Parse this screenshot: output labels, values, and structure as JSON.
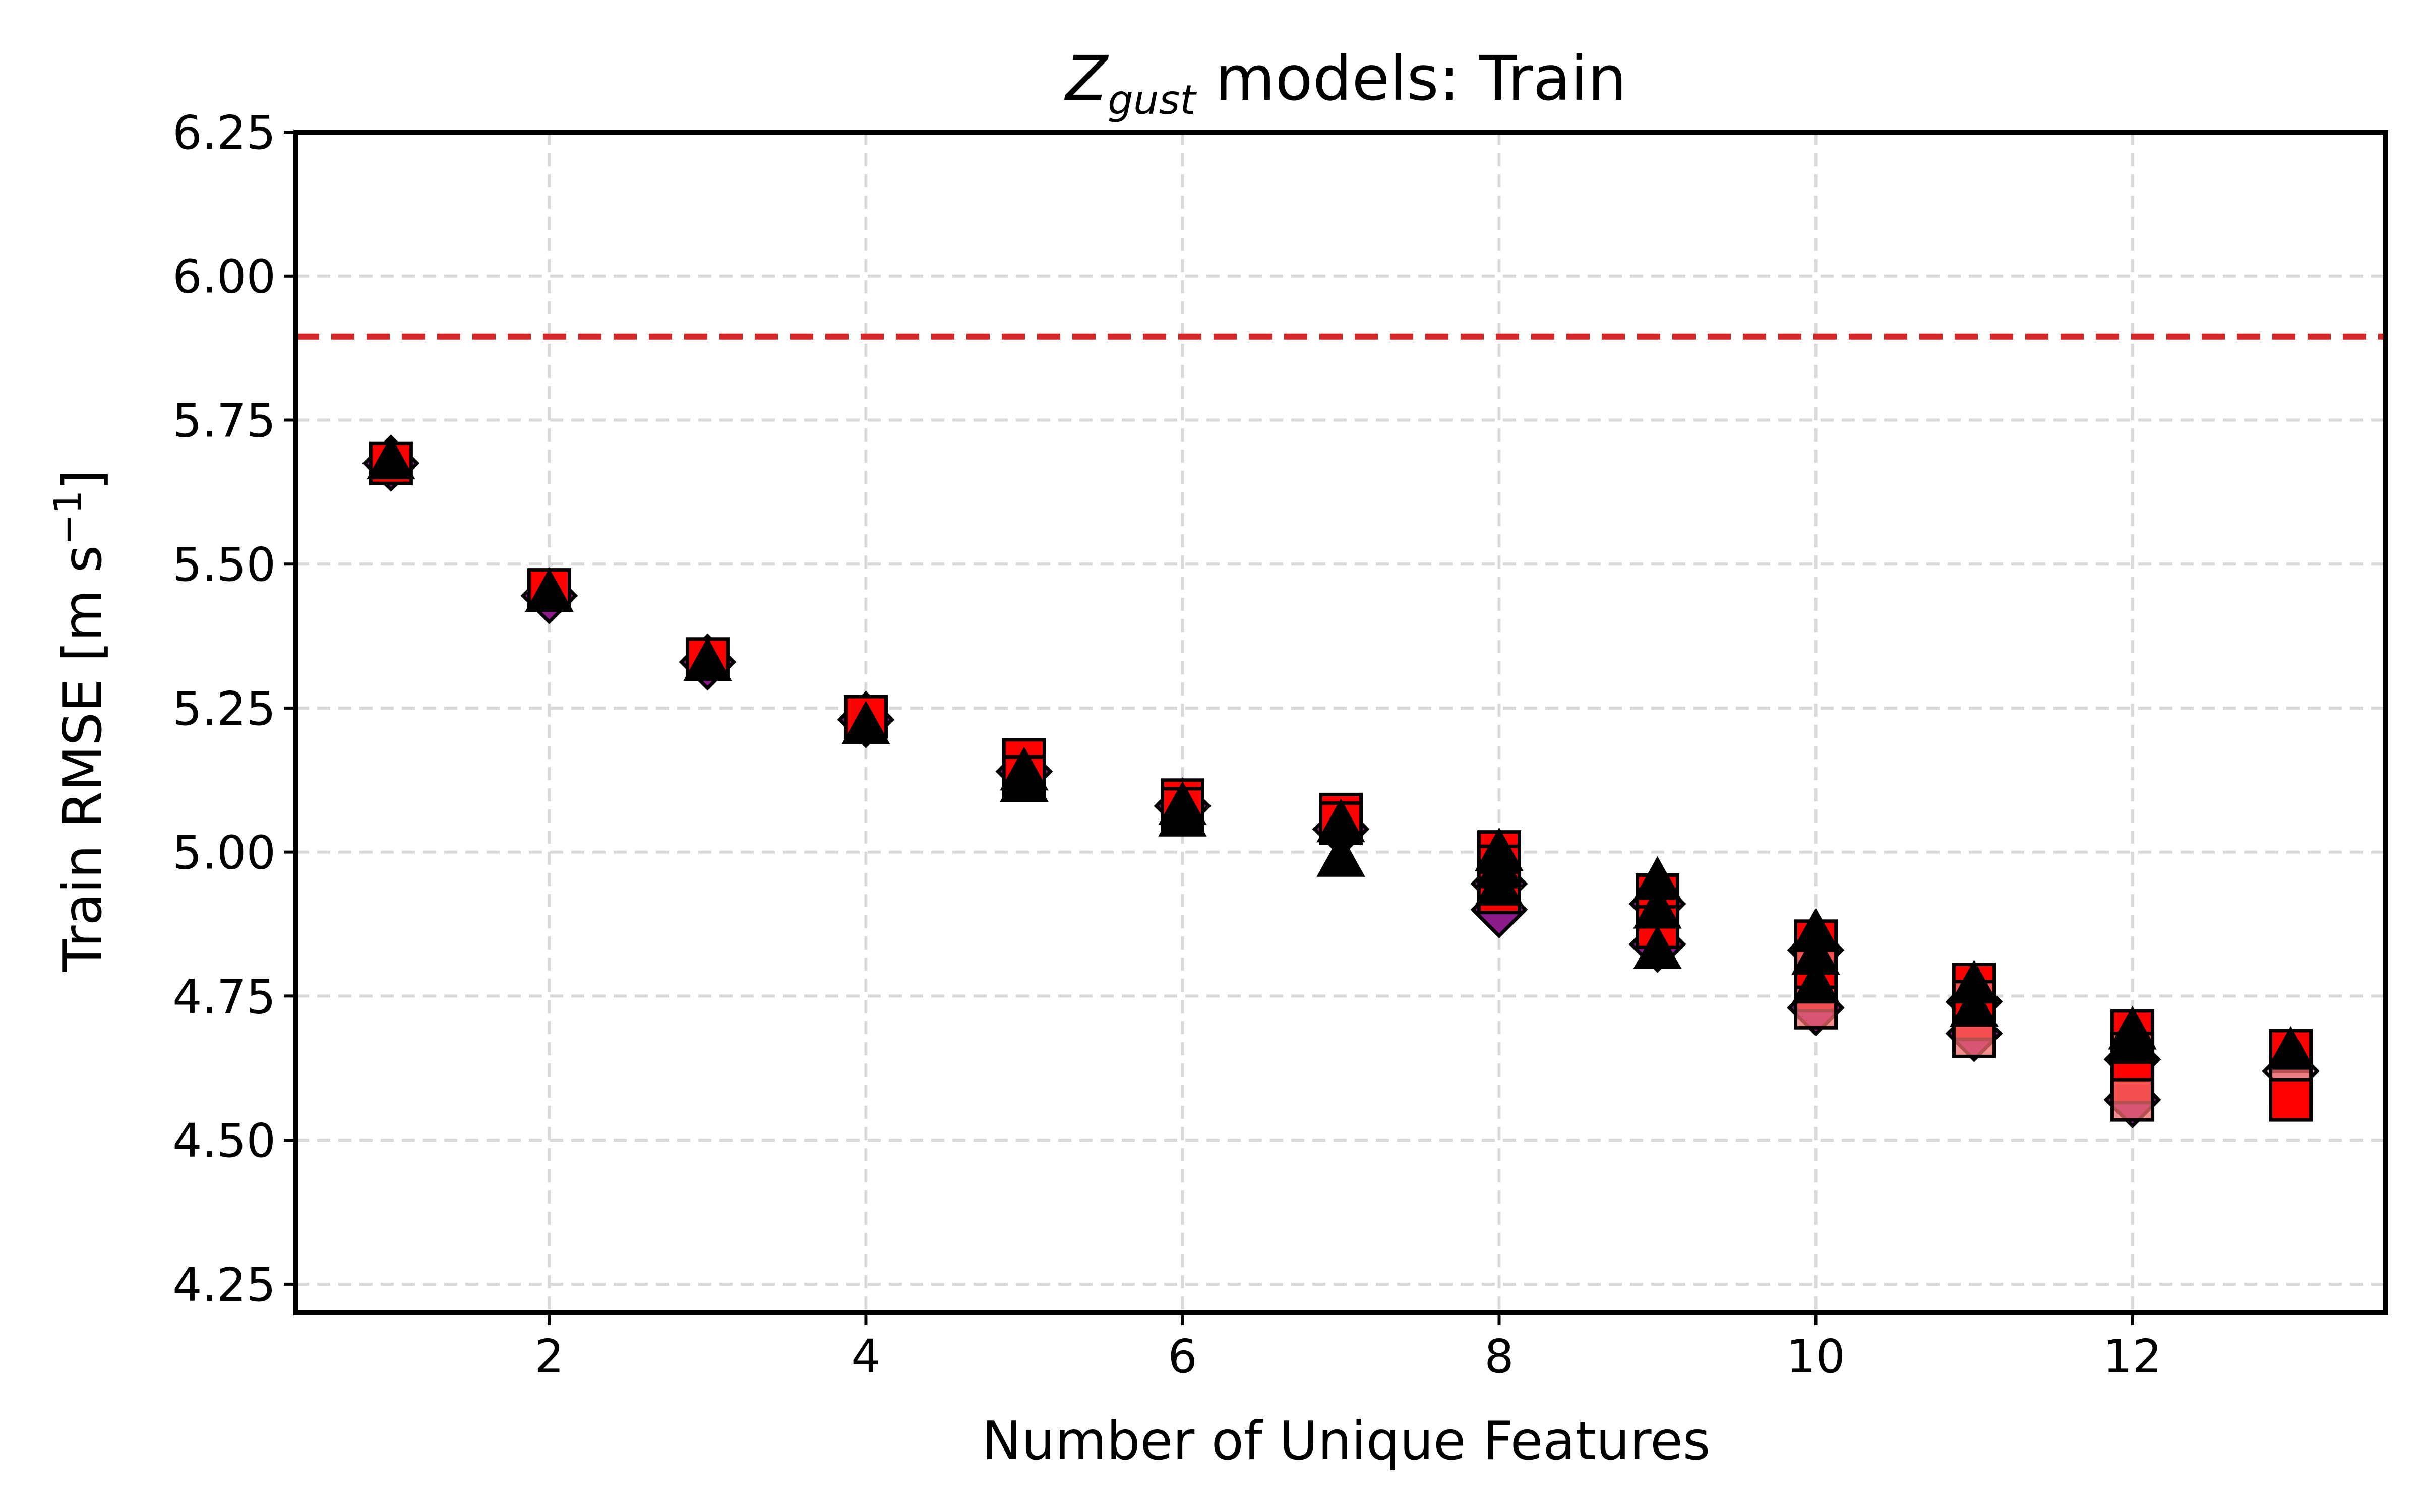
{
  "chart_data": {
    "type": "scatter",
    "title_main": "Z",
    "title_sub": "gust",
    "title_rest": " models: Train",
    "xlabel": "Number of Unique Features",
    "ylabel_main": "Train RMSE [m s",
    "ylabel_sup": "−1",
    "ylabel_end": "]",
    "xlim": [
      0.4,
      13.6
    ],
    "ylim": [
      4.2,
      6.25
    ],
    "xticks": [
      2,
      4,
      6,
      8,
      10,
      12
    ],
    "yticks": [
      4.25,
      4.5,
      4.75,
      5.0,
      5.25,
      5.5,
      5.75,
      6.0,
      6.25
    ],
    "ytick_labels": [
      "4.25",
      "4.50",
      "4.75",
      "5.00",
      "5.25",
      "5.50",
      "5.75",
      "6.00",
      "6.25"
    ],
    "grid": true,
    "reference_line": {
      "y": 5.895,
      "color": "#d62728",
      "style": "dashed"
    },
    "colors": {
      "square_fill": "#ff0000",
      "square_fill_faded": "#f26b6b",
      "diamond_fill": "#8b1a8b",
      "diamond_fill_faded": "#d98fbf",
      "triangle_fill": "#000000",
      "marker_edge": "#000000"
    },
    "series": [
      {
        "marker": "square",
        "points": [
          [
            1,
            5.675
          ],
          [
            2,
            5.455
          ],
          [
            3,
            5.335
          ],
          [
            4,
            5.235
          ],
          [
            5,
            5.16
          ],
          [
            5,
            5.13
          ],
          [
            6,
            5.09
          ],
          [
            6,
            5.075
          ],
          [
            7,
            5.065
          ],
          [
            7,
            5.05
          ],
          [
            8,
            5.0
          ],
          [
            8,
            4.975
          ],
          [
            8,
            4.93
          ],
          [
            9,
            4.925
          ],
          [
            9,
            4.9
          ],
          [
            9,
            4.87
          ],
          [
            10,
            4.845
          ],
          [
            10,
            4.8
          ],
          [
            10,
            4.76
          ],
          [
            10,
            4.73
          ],
          [
            11,
            4.77
          ],
          [
            11,
            4.74
          ],
          [
            11,
            4.71
          ],
          [
            11,
            4.68
          ],
          [
            12,
            4.69
          ],
          [
            12,
            4.65
          ],
          [
            12,
            4.6
          ],
          [
            12,
            4.57
          ],
          [
            13,
            4.655
          ],
          [
            13,
            4.6
          ],
          [
            13,
            4.57
          ]
        ]
      },
      {
        "marker": "diamond",
        "points": [
          [
            1,
            5.675
          ],
          [
            2,
            5.445
          ],
          [
            3,
            5.33
          ],
          [
            4,
            5.23
          ],
          [
            5,
            5.14
          ],
          [
            6,
            5.08
          ],
          [
            7,
            5.04
          ],
          [
            8,
            4.945
          ],
          [
            8,
            4.9
          ],
          [
            9,
            4.91
          ],
          [
            9,
            4.84
          ],
          [
            10,
            4.83
          ],
          [
            10,
            4.73
          ],
          [
            11,
            4.74
          ],
          [
            11,
            4.685
          ],
          [
            12,
            4.64
          ],
          [
            12,
            4.57
          ],
          [
            13,
            4.62
          ]
        ]
      },
      {
        "marker": "triangle",
        "points": [
          [
            1,
            5.68
          ],
          [
            2,
            5.45
          ],
          [
            3,
            5.33
          ],
          [
            4,
            5.22
          ],
          [
            5,
            5.14
          ],
          [
            5,
            5.12
          ],
          [
            6,
            5.08
          ],
          [
            6,
            5.06
          ],
          [
            7,
            5.05
          ],
          [
            7,
            4.99
          ],
          [
            8,
            5.0
          ],
          [
            8,
            4.97
          ],
          [
            8,
            4.94
          ],
          [
            9,
            4.95
          ],
          [
            9,
            4.9
          ],
          [
            9,
            4.83
          ],
          [
            10,
            4.86
          ],
          [
            10,
            4.82
          ],
          [
            10,
            4.77
          ],
          [
            11,
            4.77
          ],
          [
            11,
            4.73
          ],
          [
            12,
            4.69
          ],
          [
            12,
            4.67
          ],
          [
            13,
            4.655
          ]
        ]
      }
    ]
  }
}
